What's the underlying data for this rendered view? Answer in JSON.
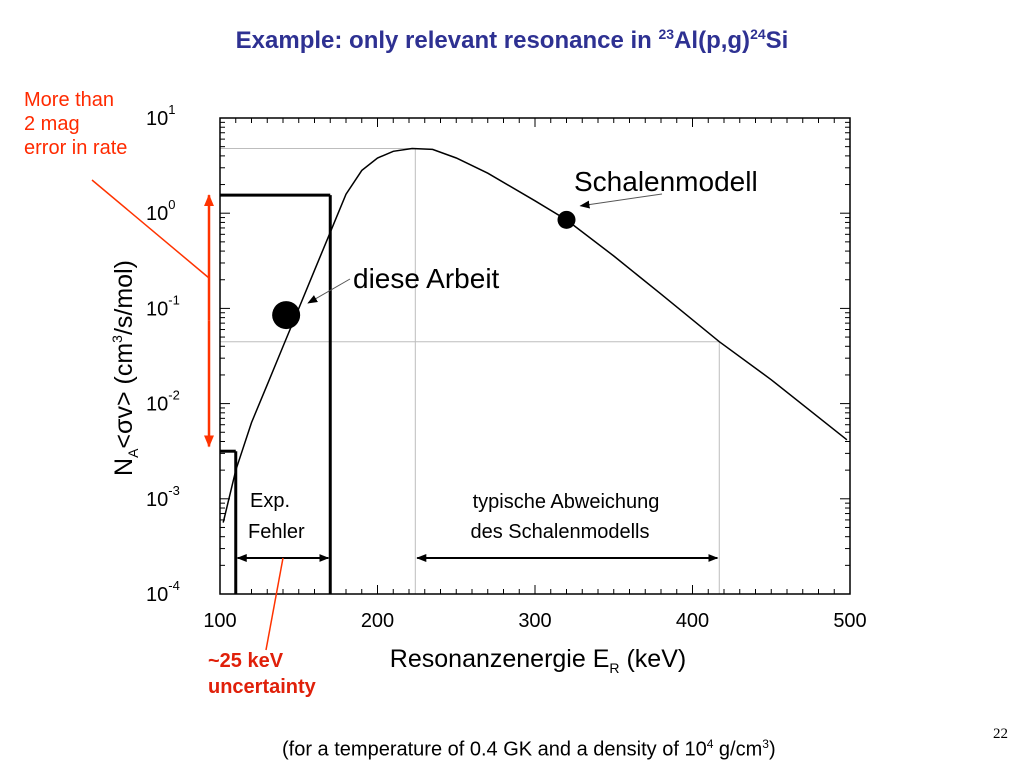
{
  "slide": {
    "title": {
      "text": "Example: only relevant resonance in ",
      "mass1": "23",
      "el1": "Al(p,g)",
      "mass2": "24",
      "el2": "Si"
    },
    "left_note": [
      "More than",
      "2 mag",
      "error in rate"
    ],
    "uncertainty_note": [
      "~25 keV",
      "uncertainty"
    ],
    "footnote": {
      "before": "(for a temperature of 0.4 GK and a density of 10",
      "exp1": "4",
      "middle": " g/cm",
      "exp2": "3",
      "after": ")"
    },
    "page_number": "22"
  },
  "chart_data": {
    "type": "line",
    "title": "",
    "xlabel": {
      "main": "Resonanzenergie  E",
      "sub": "R",
      "unit": " (keV)"
    },
    "ylabel": {
      "n": "N",
      "sub": "A",
      "mid": "<σv>  (cm",
      "sup": "3",
      "end": "/s/mol)"
    },
    "xlim": [
      100,
      500
    ],
    "ylim_log10": [
      -4,
      1
    ],
    "x_ticks": [
      100,
      200,
      300,
      400,
      500
    ],
    "y_ticks": [
      {
        "base": "10",
        "exp": "1",
        "value": 1
      },
      {
        "base": "10",
        "exp": "0",
        "value": 0
      },
      {
        "base": "10",
        "exp": "-1",
        "value": -1
      },
      {
        "base": "10",
        "exp": "-2",
        "value": -2
      },
      {
        "base": "10",
        "exp": "-3",
        "value": -3
      },
      {
        "base": "10",
        "exp": "-4",
        "value": -4
      }
    ],
    "series": [
      {
        "points_log10": [
          [
            102,
            -3.25
          ],
          [
            110,
            -2.7
          ],
          [
            120,
            -2.2
          ],
          [
            130,
            -1.8
          ],
          [
            140,
            -1.4
          ],
          [
            150,
            -1.0
          ],
          [
            160,
            -0.6
          ],
          [
            170,
            -0.2
          ],
          [
            180,
            0.2
          ],
          [
            190,
            0.45
          ],
          [
            200,
            0.58
          ],
          [
            210,
            0.65
          ],
          [
            222,
            0.68
          ],
          [
            235,
            0.67
          ],
          [
            250,
            0.58
          ],
          [
            270,
            0.42
          ],
          [
            300,
            0.13
          ],
          [
            320,
            -0.07
          ],
          [
            350,
            -0.45
          ],
          [
            380,
            -0.85
          ],
          [
            417,
            -1.35
          ],
          [
            450,
            -1.75
          ],
          [
            498,
            -2.38
          ]
        ]
      }
    ],
    "markers": [
      {
        "x": 142,
        "log10y": -1.07,
        "label": "diese Arbeit"
      },
      {
        "x": 320,
        "log10y": -0.07,
        "label": "Schalenmodell"
      }
    ],
    "annotations": {
      "error_band_x": [
        110,
        170
      ],
      "error_band_log10y": [
        -2.5,
        0.19
      ],
      "error_label": [
        "Exp.",
        "Fehler"
      ],
      "range_x": [
        224,
        417
      ],
      "range_label": [
        "typische Abweichung",
        "des Schalenmodells"
      ],
      "peak_x": 224,
      "peak_log10y": 0.68,
      "right_guide_log10y": -1.35,
      "red_arrow_log10y": [
        -2.45,
        0.19
      ]
    }
  }
}
